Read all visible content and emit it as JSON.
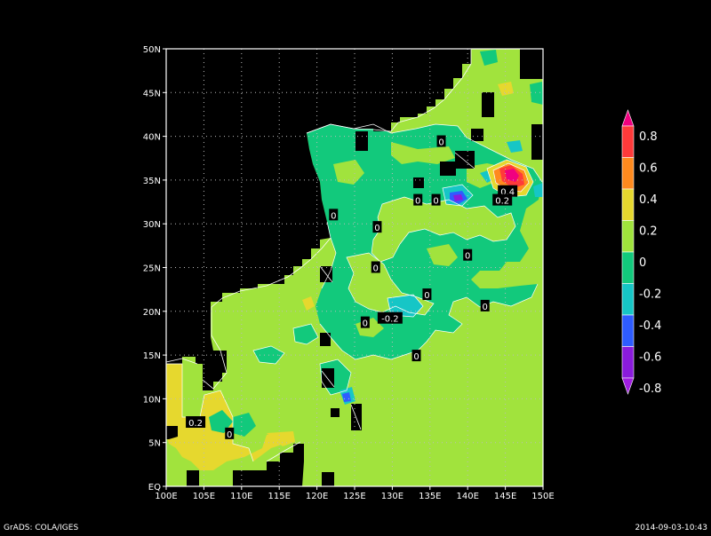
{
  "footer": {
    "left": "GrADS: COLA/IGES",
    "right": "2014-09-03-10:43"
  },
  "map": {
    "lon_labels": [
      "100E",
      "105E",
      "110E",
      "115E",
      "120E",
      "125E",
      "130E",
      "135E",
      "140E",
      "145E",
      "150E"
    ],
    "lat_labels": [
      "EQ",
      "5N",
      "10N",
      "15N",
      "20N",
      "25N",
      "30N",
      "35N",
      "40N",
      "45N",
      "50N"
    ],
    "lon_range": [
      100,
      150
    ],
    "lat_range": [
      0,
      50
    ],
    "grid": true,
    "contour_labels": [
      {
        "text": "0",
        "lon": 136.5,
        "lat": 39.4
      },
      {
        "text": "0",
        "lon": 122.2,
        "lat": 31.0
      },
      {
        "text": "0",
        "lon": 128.0,
        "lat": 29.6
      },
      {
        "text": "0",
        "lon": 133.4,
        "lat": 32.7
      },
      {
        "text": "0",
        "lon": 135.8,
        "lat": 32.7
      },
      {
        "text": "0.4",
        "lon": 145.3,
        "lat": 33.7
      },
      {
        "text": "0.2",
        "lon": 144.6,
        "lat": 32.7
      },
      {
        "text": "0",
        "lon": 140.0,
        "lat": 26.4
      },
      {
        "text": "0",
        "lon": 127.8,
        "lat": 25.0
      },
      {
        "text": "0",
        "lon": 134.6,
        "lat": 21.9
      },
      {
        "text": "0",
        "lon": 142.3,
        "lat": 20.6
      },
      {
        "text": "-0.2",
        "lon": 129.7,
        "lat": 19.2
      },
      {
        "text": "0",
        "lon": 126.4,
        "lat": 18.7
      },
      {
        "text": "0",
        "lon": 133.2,
        "lat": 14.9
      },
      {
        "text": "0",
        "lon": 108.4,
        "lat": 6.0
      },
      {
        "text": "0.2",
        "lon": 103.9,
        "lat": 7.3
      }
    ]
  },
  "legend": {
    "labels": [
      "0.8",
      "0.6",
      "0.4",
      "0.2",
      "0",
      "-0.2",
      "-0.4",
      "-0.6",
      "-0.8"
    ],
    "colors": [
      "#f0007f",
      "#ff3a3a",
      "#ff8a1e",
      "#e6d82e",
      "#9fe33c",
      "#12c97c",
      "#16c6c6",
      "#2e5cff",
      "#8a1bdc",
      "#a01ee0"
    ],
    "tail_color": "#a01ee0"
  },
  "colors": {
    "ocean": "#a1e33d",
    "land": "#000000",
    "coast": "#ffffff"
  }
}
